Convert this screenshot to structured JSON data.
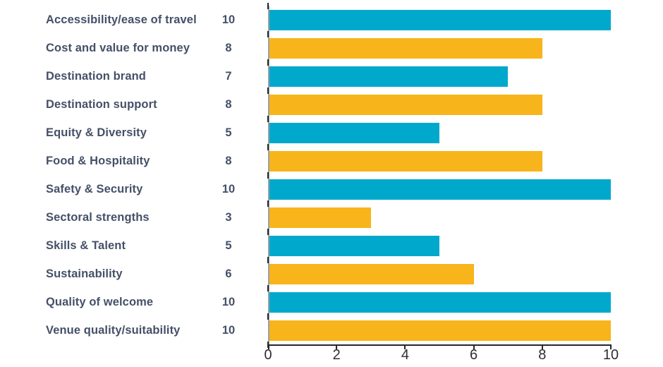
{
  "colors": {
    "teal": "#00A9CC",
    "yellow": "#F8B41B",
    "label_text": "#455068",
    "axis_tick_text": "#2E2E2E",
    "axis_line": "#262626",
    "category_axis_line": "#9AA0A6"
  },
  "chart_data": {
    "type": "bar",
    "orientation": "horizontal",
    "title": "",
    "xlabel": "",
    "ylabel": "",
    "xlim": [
      0,
      10
    ],
    "xticks": [
      0,
      2,
      4,
      6,
      8,
      10
    ],
    "grid": false,
    "legend": false,
    "value_labels_shown": true,
    "categories": [
      "Accessibility/ease of travel",
      "Cost and value for money",
      "Destination brand",
      "Destination support",
      "Equity & Diversity",
      "Food & Hospitality",
      "Safety & Security",
      "Sectoral strengths",
      "Skills & Talent",
      "Sustainability",
      "Quality of welcome",
      "Venue quality/suitability"
    ],
    "values": [
      10,
      8,
      7,
      8,
      5,
      8,
      10,
      3,
      5,
      6,
      10,
      10
    ],
    "bar_color_pattern": [
      "teal",
      "yellow"
    ]
  }
}
